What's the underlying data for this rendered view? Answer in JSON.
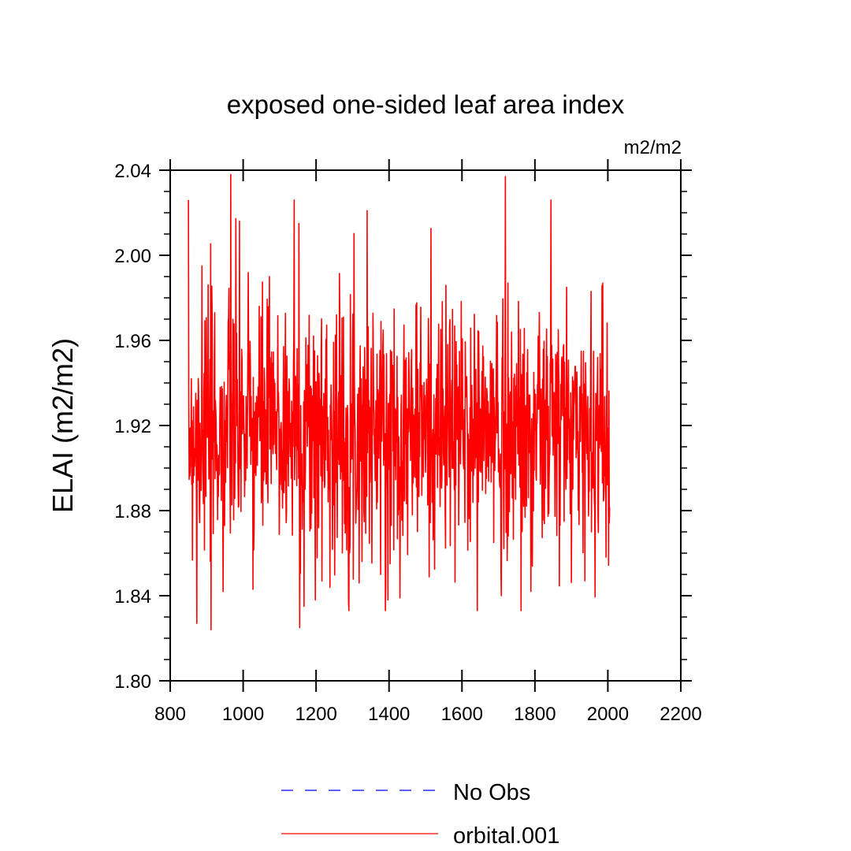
{
  "chart_data": {
    "type": "line",
    "title": "exposed one-sided leaf area index",
    "units_label": "m2/m2",
    "xlabel": "",
    "ylabel": "ELAI  (m2/m2)",
    "xlim": [
      800,
      2200
    ],
    "ylim": [
      1.8,
      2.04
    ],
    "xticks": [
      800,
      1000,
      1200,
      1400,
      1600,
      1800,
      2000,
      2200
    ],
    "yticks": [
      1.8,
      1.84,
      1.88,
      1.92,
      1.96,
      2.0,
      2.04
    ],
    "xtick_labels": [
      "800",
      "1000",
      "1200",
      "1400",
      "1600",
      "1800",
      "2000",
      "2200"
    ],
    "ytick_labels": [
      "1.80",
      "1.84",
      "1.88",
      "1.92",
      "1.96",
      "2.00",
      "2.04"
    ],
    "grid": false,
    "legend_position": "bottom-center",
    "series": [
      {
        "name": "No Obs",
        "color": "#0000ff",
        "style": "dashed",
        "x": [],
        "y": []
      },
      {
        "name": "orbital.001",
        "color": "#ff0000",
        "style": "solid",
        "x_start": 850,
        "x_end": 2005,
        "mean": 1.918,
        "spread": 0.03,
        "min": 1.825,
        "max": 2.038,
        "peaks": [
          [
            966,
            2.038
          ],
          [
            1719,
            2.037
          ],
          [
            1140,
            2.026
          ],
          [
            1844,
            2.026
          ],
          [
            1340,
            2.021
          ],
          [
            1153,
            2.015
          ],
          [
            990,
            2.016
          ],
          [
            1072,
            1.99
          ],
          [
            887,
            1.995
          ]
        ],
        "troughs": [
          [
            912,
            1.824
          ],
          [
            1155,
            1.825
          ],
          [
            873,
            1.827
          ],
          [
            1167,
            1.835
          ],
          [
            1198,
            1.838
          ],
          [
            1397,
            1.838
          ],
          [
            1708,
            1.84
          ],
          [
            1789,
            1.842
          ],
          [
            945,
            1.842
          ],
          [
            1027,
            1.843
          ],
          [
            1937,
            1.847
          ]
        ]
      }
    ]
  }
}
